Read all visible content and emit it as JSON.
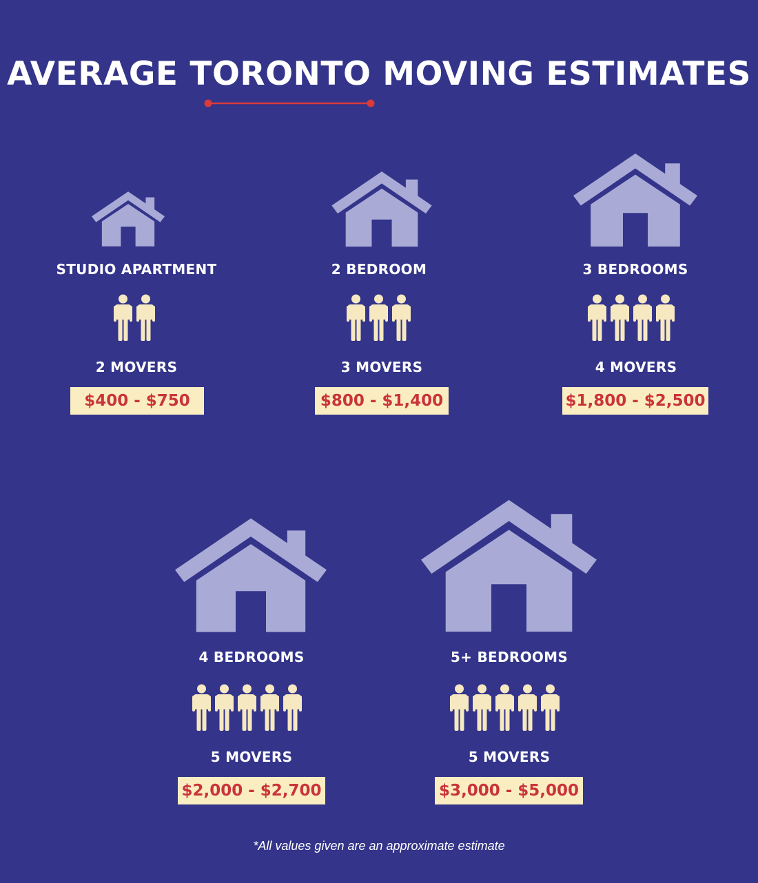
{
  "title": "AVERAGE TORONTO MOVING ESTIMATES",
  "colors": {
    "background": "#33348a",
    "house": "#a9aad6",
    "person": "#f6e8c1",
    "accent": "#d93a3a",
    "price_bg": "#faedc2",
    "price_text": "#c9343b"
  },
  "icons": {
    "house": "house-icon",
    "person": "person-icon",
    "divider": "red-line-divider"
  },
  "estimates": [
    {
      "label": "STUDIO APARTMENT",
      "movers_count": 2,
      "movers_label": "2 MOVERS",
      "price": "$400 - $750"
    },
    {
      "label": "2 BEDROOM",
      "movers_count": 3,
      "movers_label": "3 MOVERS",
      "price": "$800 - $1,400"
    },
    {
      "label": "3 BEDROOMS",
      "movers_count": 4,
      "movers_label": "4 MOVERS",
      "price": "$1,800 - $2,500"
    },
    {
      "label": "4 BEDROOMS",
      "movers_count": 5,
      "movers_label": "5 MOVERS",
      "price": "$2,000 - $2,700"
    },
    {
      "label": "5+ BEDROOMS",
      "movers_count": 5,
      "movers_label": "5 MOVERS",
      "price": "$3,000 - $5,000"
    }
  ],
  "footnote": "*All values given are an approximate estimate"
}
